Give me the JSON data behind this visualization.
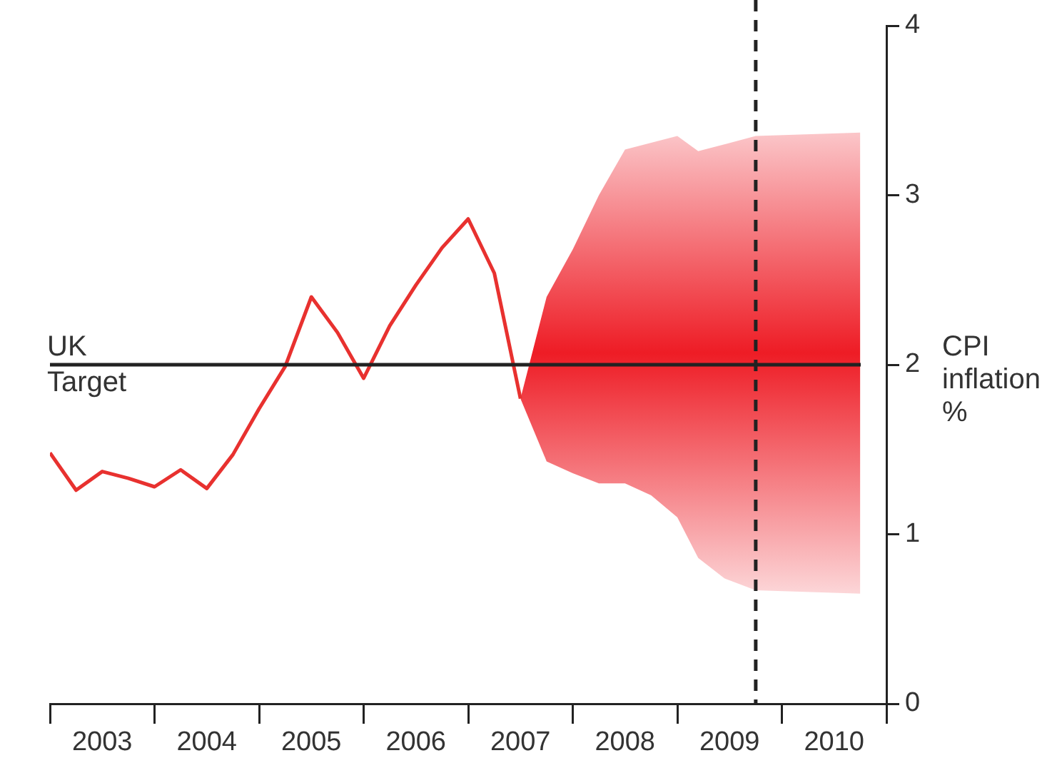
{
  "chart_data": {
    "type": "line",
    "ylabel": "CPI inflation %",
    "xlim": [
      2003,
      2011
    ],
    "xticks": [
      {
        "value": 2003,
        "label": null
      },
      {
        "value": 2003.5,
        "label": "2003"
      },
      {
        "value": 2004,
        "label": null
      },
      {
        "value": 2004.5,
        "label": "2004"
      },
      {
        "value": 2005,
        "label": null
      },
      {
        "value": 2005.5,
        "label": "2005"
      },
      {
        "value": 2006,
        "label": null
      },
      {
        "value": 2006.5,
        "label": "2006"
      },
      {
        "value": 2007,
        "label": null
      },
      {
        "value": 2007.5,
        "label": "2007"
      },
      {
        "value": 2008,
        "label": null
      },
      {
        "value": 2008.5,
        "label": "2008"
      },
      {
        "value": 2009,
        "label": null
      },
      {
        "value": 2009.5,
        "label": "2009"
      },
      {
        "value": 2010,
        "label": null
      },
      {
        "value": 2010.5,
        "label": "2010"
      },
      {
        "value": 2011,
        "label": null
      }
    ],
    "ylim": [
      0,
      4
    ],
    "yticks": [
      0,
      1,
      2,
      3,
      4
    ],
    "grid": false,
    "legend": false,
    "series": [
      {
        "color": "#e8312f",
        "x": [
          2003,
          2003.25,
          2003.5,
          2003.75,
          2004,
          2004.25,
          2004.5,
          2004.75,
          2005,
          2005.25,
          2005.5,
          2005.75,
          2006,
          2006.25,
          2006.5,
          2006.75,
          2007,
          2007.25,
          2007.5
        ],
        "values": [
          1.48,
          1.26,
          1.37,
          1.33,
          1.28,
          1.38,
          1.27,
          1.47,
          1.74,
          1.99,
          2.4,
          2.19,
          1.92,
          2.23,
          2.47,
          2.69,
          2.86,
          2.54,
          1.8
        ]
      },
      {
        "type": "area",
        "color": "#ee1c25",
        "x": [
          2007.5,
          2007.75,
          2008,
          2008.25,
          2008.5,
          2008.75,
          2009,
          2009.2,
          2009.45,
          2009.75,
          2010.75
        ],
        "values": [
          null,
          null,
          null,
          null,
          null,
          null,
          null,
          null,
          null,
          null,
          null
        ],
        "upper": [
          1.8,
          2.4,
          2.68,
          3.0,
          3.27,
          3.31,
          3.35,
          3.26,
          3.3,
          3.35,
          3.37
        ],
        "lower": [
          1.8,
          1.43,
          1.36,
          1.3,
          1.3,
          1.23,
          1.1,
          0.86,
          0.74,
          0.67,
          0.65
        ]
      }
    ],
    "ref_lines": [
      {
        "axis": "y",
        "value": 2,
        "label": "UK Target",
        "color": "#222222",
        "line_style": "solid"
      },
      {
        "axis": "x",
        "value": 2009.75,
        "color": "#222222",
        "line_style": "dashed"
      }
    ]
  }
}
